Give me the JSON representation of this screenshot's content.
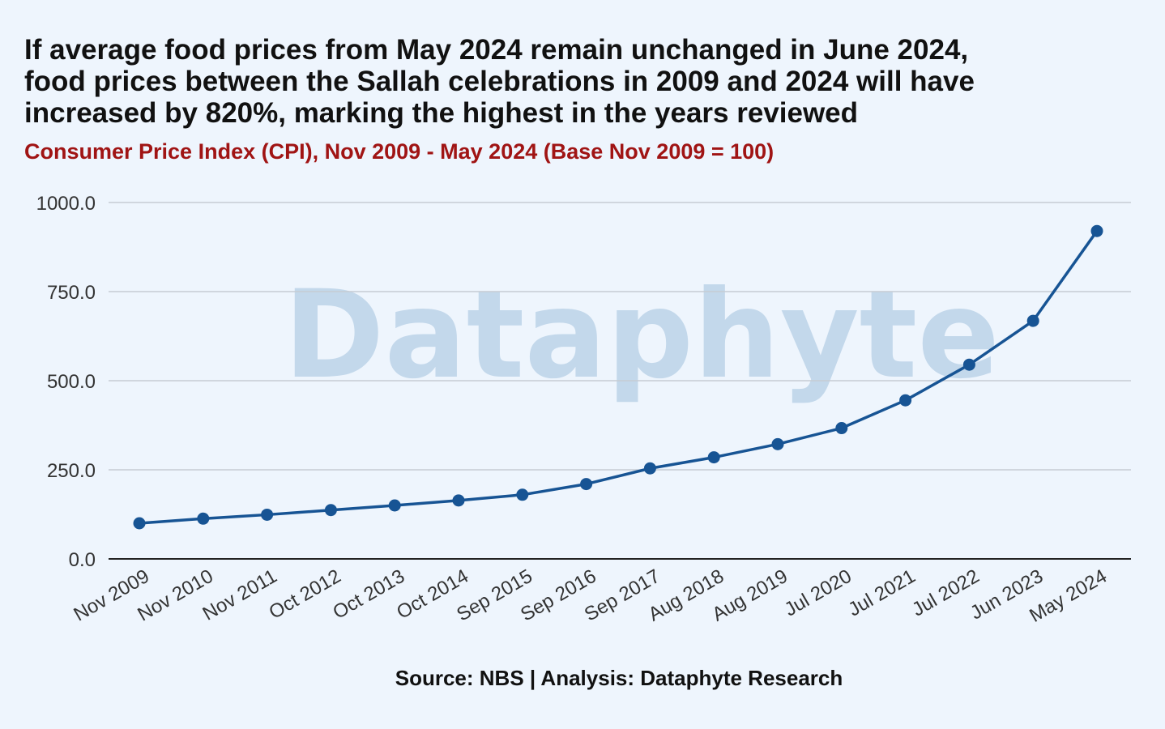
{
  "title_lines": [
    "If average food prices from May 2024 remain unchanged in June 2024,",
    "food prices between the Sallah celebrations in 2009 and 2024 will have",
    "increased by 820%, marking the highest in the years reviewed"
  ],
  "subtitle": "Consumer Price Index (CPI), Nov 2009 - May 2024 (Base Nov 2009 = 100)",
  "source": "Source: NBS | Analysis: Dataphyte Research",
  "watermark": "Dataphyte",
  "colors": {
    "background": "#eef5fd",
    "line": "#175494",
    "subtitle": "#a01414",
    "grid": "#c6ccd3",
    "watermark": "#c3d8eb"
  },
  "chart_data": {
    "type": "line",
    "categories": [
      "Nov 2009",
      "Nov 2010",
      "Nov 2011",
      "Oct 2012",
      "Oct 2013",
      "Oct 2014",
      "Sep 2015",
      "Sep 2016",
      "Sep 2017",
      "Aug 2018",
      "Aug 2019",
      "Jul 2020",
      "Jul 2021",
      "Jul 2022",
      "Jun 2023",
      "May 2024"
    ],
    "series": [
      {
        "values": [
          100,
          113,
          124,
          137,
          150,
          164,
          180,
          210,
          254,
          285,
          322,
          367,
          445,
          545,
          668,
          920
        ]
      }
    ],
    "ylim": [
      0,
      1000
    ],
    "yticks": [
      "0.0",
      "250.0",
      "500.0",
      "750.0",
      "1000.0"
    ],
    "ytick_values": [
      0,
      250,
      500,
      750,
      1000
    ],
    "grid": true,
    "markers": true
  }
}
